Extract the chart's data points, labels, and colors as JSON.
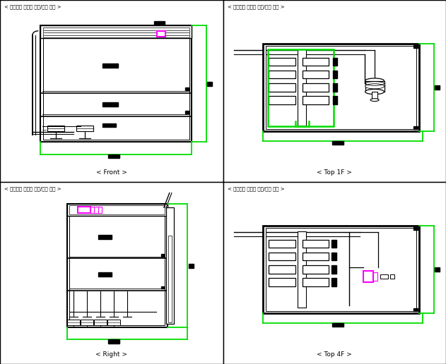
{
  "header_text": "< 현장적용 실험용 후드/덕트 도면 >",
  "bg_color": "#ffffff",
  "line_color": "#000000",
  "green_color": "#00dd00",
  "magenta_color": "#ff00ff",
  "panel_labels": [
    "< Front >",
    "< Top 1F >",
    "< Right >",
    "< Top 4F >"
  ]
}
